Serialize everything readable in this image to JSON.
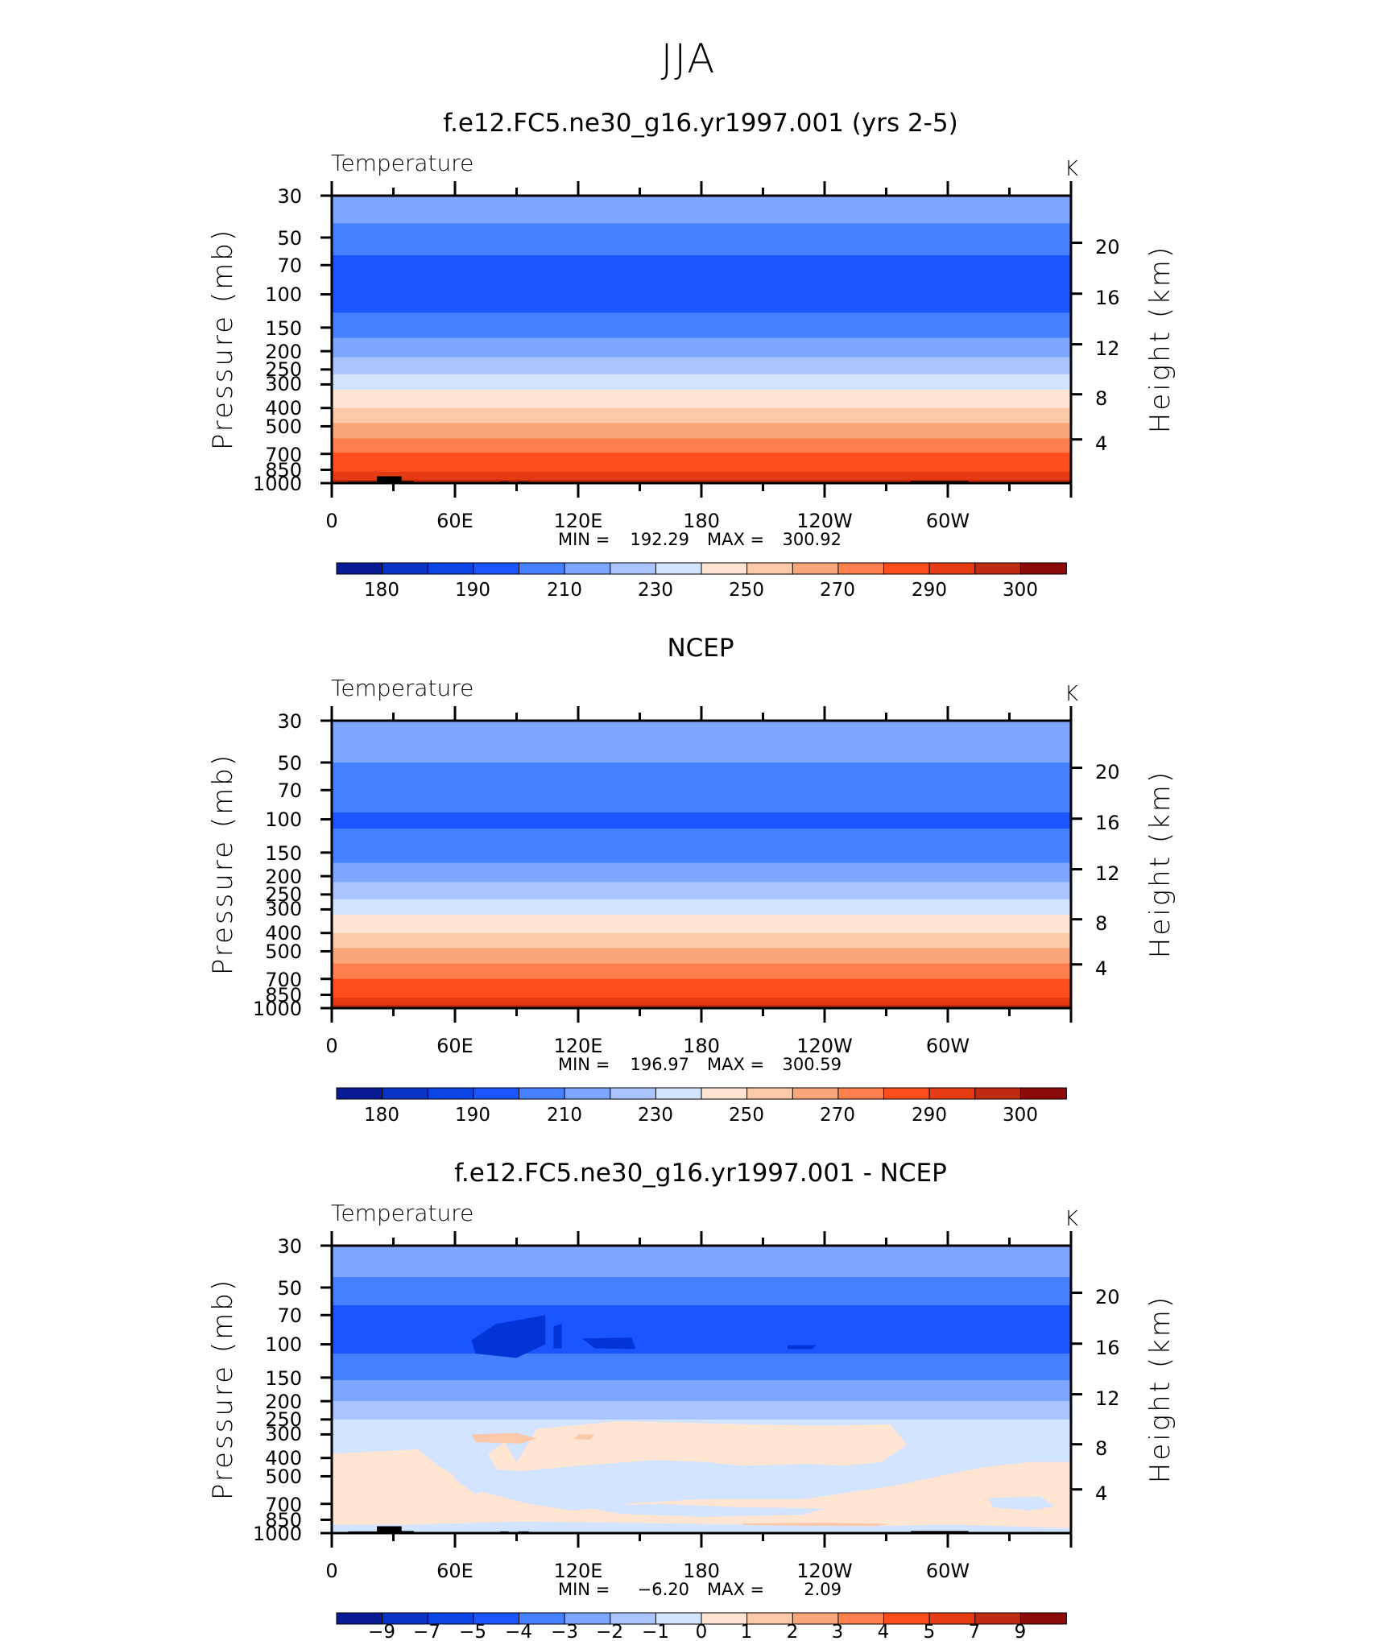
{
  "figure": {
    "title": "JJA"
  },
  "chart_data": [
    {
      "type": "heatmap",
      "title": "f.e12.FC5.ne30_g16.yr1997.001 (yrs 2-5)",
      "subtitle": "Temperature",
      "units": "K",
      "ylabel": "Pressure (mb)",
      "ylabel_right": "Height (km)",
      "xlabel": "",
      "x_ticks": [
        "0",
        "60E",
        "120E",
        "180",
        "120W",
        "60W"
      ],
      "y_ticks": [
        "30",
        "50",
        "70",
        "100",
        "150",
        "200",
        "250",
        "300",
        "400",
        "500",
        "700",
        "850",
        "1000"
      ],
      "y_ticks_right": [
        "20",
        "16",
        "12",
        "8",
        "4"
      ],
      "stats": {
        "min_label": "MIN =",
        "min": "192.29",
        "max_label": "MAX =",
        "max": "300.92"
      },
      "colorbar_labels": [
        "180",
        "190",
        "210",
        "230",
        "250",
        "270",
        "290",
        "300"
      ],
      "layers": [
        {
          "p_top": 30,
          "p_bottom": 42,
          "color": "#7fa6ff"
        },
        {
          "p_top": 42,
          "p_bottom": 62,
          "color": "#4580ff"
        },
        {
          "p_top": 62,
          "p_bottom": 125,
          "color": "#1a55ff"
        },
        {
          "p_top": 125,
          "p_bottom": 170,
          "color": "#4580ff"
        },
        {
          "p_top": 170,
          "p_bottom": 215,
          "color": "#7fa6ff"
        },
        {
          "p_top": 215,
          "p_bottom": 265,
          "color": "#aac4ff"
        },
        {
          "p_top": 265,
          "p_bottom": 320,
          "color": "#d2e4ff"
        },
        {
          "p_top": 320,
          "p_bottom": 400,
          "color": "#ffe5d2"
        },
        {
          "p_top": 400,
          "p_bottom": 480,
          "color": "#fcc8aa"
        },
        {
          "p_top": 480,
          "p_bottom": 580,
          "color": "#fba57a"
        },
        {
          "p_top": 580,
          "p_bottom": 690,
          "color": "#fd7f4d"
        },
        {
          "p_top": 690,
          "p_bottom": 870,
          "color": "#ff4e1e"
        },
        {
          "p_top": 870,
          "p_bottom": 960,
          "color": "#e53a12"
        },
        {
          "p_top": 960,
          "p_bottom": 1000,
          "color": "#c02a0e"
        }
      ]
    },
    {
      "type": "heatmap",
      "title": "NCEP",
      "subtitle": "Temperature",
      "units": "K",
      "ylabel": "Pressure (mb)",
      "ylabel_right": "Height (km)",
      "xlabel": "",
      "x_ticks": [
        "0",
        "60E",
        "120E",
        "180",
        "120W",
        "60W"
      ],
      "y_ticks": [
        "30",
        "50",
        "70",
        "100",
        "150",
        "200",
        "250",
        "300",
        "400",
        "500",
        "700",
        "850",
        "1000"
      ],
      "y_ticks_right": [
        "20",
        "16",
        "12",
        "8",
        "4"
      ],
      "stats": {
        "min_label": "MIN =",
        "min": "196.97",
        "max_label": "MAX =",
        "max": "300.59"
      },
      "colorbar_labels": [
        "180",
        "190",
        "210",
        "230",
        "250",
        "270",
        "290",
        "300"
      ],
      "layers": [
        {
          "p_top": 30,
          "p_bottom": 50,
          "color": "#7fa6ff"
        },
        {
          "p_top": 50,
          "p_bottom": 92,
          "color": "#4580ff"
        },
        {
          "p_top": 92,
          "p_bottom": 112,
          "color": "#1a55ff"
        },
        {
          "p_top": 112,
          "p_bottom": 170,
          "color": "#4580ff"
        },
        {
          "p_top": 170,
          "p_bottom": 215,
          "color": "#7fa6ff"
        },
        {
          "p_top": 215,
          "p_bottom": 265,
          "color": "#aac4ff"
        },
        {
          "p_top": 265,
          "p_bottom": 320,
          "color": "#d2e4ff"
        },
        {
          "p_top": 320,
          "p_bottom": 400,
          "color": "#ffe5d2"
        },
        {
          "p_top": 400,
          "p_bottom": 480,
          "color": "#fcc8aa"
        },
        {
          "p_top": 480,
          "p_bottom": 580,
          "color": "#fba57a"
        },
        {
          "p_top": 580,
          "p_bottom": 700,
          "color": "#fd7f4d"
        },
        {
          "p_top": 700,
          "p_bottom": 880,
          "color": "#ff4e1e"
        },
        {
          "p_top": 880,
          "p_bottom": 960,
          "color": "#e53a12"
        },
        {
          "p_top": 960,
          "p_bottom": 1000,
          "color": "#c02a0e"
        }
      ]
    },
    {
      "type": "heatmap",
      "title": "f.e12.FC5.ne30_g16.yr1997.001 - NCEP",
      "subtitle": "Temperature",
      "units": "K",
      "ylabel": "Pressure (mb)",
      "ylabel_right": "Height (km)",
      "xlabel": "",
      "x_ticks": [
        "0",
        "60E",
        "120E",
        "180",
        "120W",
        "60W"
      ],
      "y_ticks": [
        "30",
        "50",
        "70",
        "100",
        "150",
        "200",
        "250",
        "300",
        "400",
        "500",
        "700",
        "850",
        "1000"
      ],
      "y_ticks_right": [
        "20",
        "16",
        "12",
        "8",
        "4"
      ],
      "stats": {
        "min_label": "MIN =",
        "min": "−6.20",
        "max_label": "MAX =",
        "max": "2.09"
      },
      "colorbar_labels": [
        "−9",
        "−7",
        "−5",
        "−4",
        "−3",
        "−2",
        "−1",
        "0",
        "1",
        "2",
        "3",
        "4",
        "5",
        "7",
        "9"
      ],
      "layers": [
        {
          "p_top": 30,
          "p_bottom": 44,
          "color": "#7fa6ff"
        },
        {
          "p_top": 44,
          "p_bottom": 62,
          "color": "#4580ff"
        },
        {
          "p_top": 62,
          "p_bottom": 112,
          "color": "#1a55ff"
        },
        {
          "p_top": 112,
          "p_bottom": 155,
          "color": "#4580ff"
        },
        {
          "p_top": 155,
          "p_bottom": 200,
          "color": "#7fa6ff"
        },
        {
          "p_top": 200,
          "p_bottom": 250,
          "color": "#aac4ff"
        },
        {
          "p_top": 250,
          "p_bottom": 1000,
          "color": "#d2e4ff"
        }
      ],
      "anomaly_shapes": [
        {
          "color": "#ffe5d2",
          "lon": [
            90,
            100,
            140,
            200,
            240,
            272,
            280,
            268,
            250,
            232,
            200,
            182,
            158,
            120,
            92,
            80,
            76,
            84
          ],
          "p": [
            420,
            280,
            255,
            265,
            270,
            265,
            340,
            420,
            440,
            430,
            440,
            420,
            410,
            440,
            470,
            460,
            380,
            330
          ]
        },
        {
          "color": "#ffe5d2",
          "lon": [
            0,
            42,
            52,
            72,
            96,
            118,
            150,
            180,
            230,
            274,
            316,
            340,
            360,
            360,
            300,
            260,
            200,
            140,
            90,
            40,
            0
          ],
          "p": [
            380,
            360,
            440,
            600,
            700,
            760,
            690,
            660,
            660,
            560,
            450,
            420,
            420,
            940,
            900,
            920,
            900,
            880,
            870,
            900,
            900
          ]
        },
        {
          "color": "#d2e4ff",
          "lon": [
            58,
            72,
            80,
            70,
            60
          ],
          "p": [
            430,
            460,
            560,
            620,
            520
          ]
        },
        {
          "color": "#d2e4ff",
          "lon": [
            120,
            160,
            200,
            240,
            230,
            180,
            140
          ],
          "p": [
            720,
            700,
            730,
            740,
            800,
            820,
            790
          ]
        },
        {
          "color": "#d2e4ff",
          "lon": [
            320,
            345,
            352,
            340,
            322
          ],
          "p": [
            650,
            640,
            720,
            760,
            730
          ]
        },
        {
          "color": "#fcc8aa",
          "lon": [
            68,
            90,
            100,
            92,
            70
          ],
          "p": [
            300,
            295,
            315,
            335,
            330
          ]
        },
        {
          "color": "#fcc8aa",
          "lon": [
            120,
            128,
            126,
            118
          ],
          "p": [
            300,
            300,
            320,
            318
          ]
        },
        {
          "color": "#fcc8aa",
          "lon": [
            200,
            240,
            272,
            265,
            230,
            200
          ],
          "p": [
            890,
            880,
            895,
            915,
            915,
            905
          ]
        },
        {
          "color": "#0034d6",
          "lon": [
            68,
            80,
            104,
            104,
            90,
            70
          ],
          "p": [
            95,
            78,
            70,
            100,
            118,
            112
          ]
        },
        {
          "color": "#0034d6",
          "lon": [
            122,
            146,
            148,
            128
          ],
          "p": [
            93,
            92,
            106,
            105
          ]
        },
        {
          "color": "#0034d6",
          "lon": [
            108,
            112,
            112,
            108
          ],
          "p": [
            80,
            78,
            105,
            105
          ]
        },
        {
          "color": "#0034d6",
          "lon": [
            222,
            236,
            234,
            222
          ],
          "p": [
            101,
            101,
            106,
            106
          ]
        }
      ]
    }
  ],
  "colors": {
    "temperature_palette": [
      "#0a1a96",
      "#0a33c8",
      "#0d44e6",
      "#1a55ff",
      "#4580ff",
      "#7fa6ff",
      "#aac4ff",
      "#d2e4ff",
      "#ffe5d2",
      "#fcc8aa",
      "#fba57a",
      "#fd7f4d",
      "#ff4e1e",
      "#e53a12",
      "#c02a0e",
      "#8b0a0a"
    ],
    "topography": "#000000"
  }
}
